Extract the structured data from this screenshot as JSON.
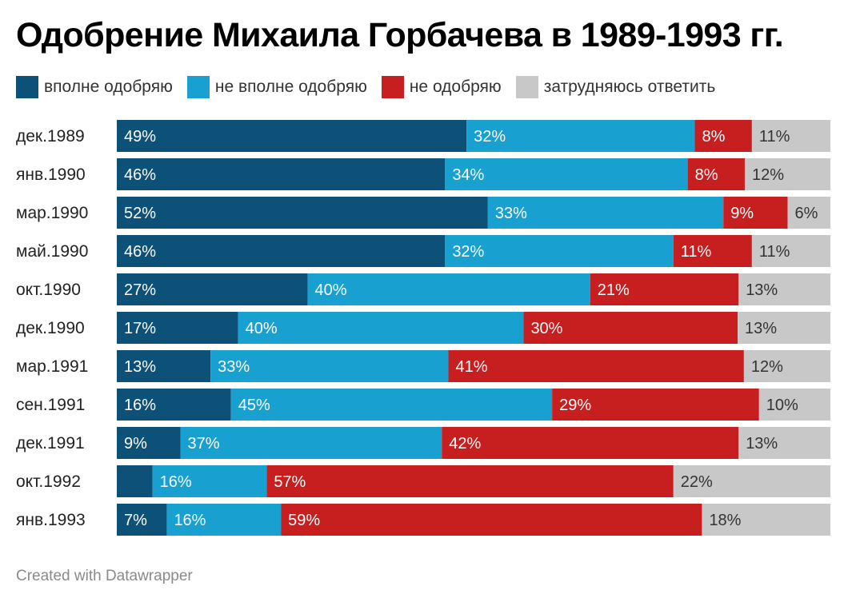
{
  "chart_data": {
    "type": "bar",
    "orientation": "horizontal",
    "stacked": true,
    "title": "Одобрение Михаила Горбачева в 1989-1993 гг.",
    "categories": [
      "дек.1989",
      "янв.1990",
      "мар.1990",
      "май.1990",
      "окт.1990",
      "дек.1990",
      "мар.1991",
      "сен.1991",
      "дек.1991",
      "окт.1992",
      "янв.1993"
    ],
    "series": [
      {
        "name": "вполне одобряю",
        "color": "#0d5078",
        "text_color": "#ffffff",
        "values": [
          49,
          46,
          52,
          46,
          27,
          17,
          13,
          16,
          9,
          5,
          7
        ],
        "labels": [
          "49%",
          "46%",
          "52%",
          "46%",
          "27%",
          "17%",
          "13%",
          "16%",
          "9%",
          "",
          "7%"
        ]
      },
      {
        "name": "не вполне одобряю",
        "color": "#18a1d0",
        "text_color": "#ffffff",
        "values": [
          32,
          34,
          33,
          32,
          40,
          40,
          33,
          45,
          37,
          16,
          16
        ],
        "labels": [
          "32%",
          "34%",
          "33%",
          "32%",
          "40%",
          "40%",
          "33%",
          "45%",
          "37%",
          "16%",
          "16%"
        ]
      },
      {
        "name": "не одобряю",
        "color": "#c71e1f",
        "text_color": "#ffffff",
        "values": [
          8,
          8,
          9,
          11,
          21,
          30,
          41,
          29,
          42,
          57,
          59
        ],
        "labels": [
          "8%",
          "8%",
          "9%",
          "11%",
          "21%",
          "30%",
          "41%",
          "29%",
          "42%",
          "57%",
          "59%"
        ]
      },
      {
        "name": "затрудняюсь ответить",
        "color": "#c8c8c8",
        "text_color": "#333333",
        "values": [
          11,
          12,
          6,
          11,
          13,
          13,
          12,
          10,
          13,
          22,
          18
        ],
        "labels": [
          "11%",
          "12%",
          "6%",
          "11%",
          "13%",
          "13%",
          "12%",
          "10%",
          "13%",
          "22%",
          "18%"
        ]
      }
    ],
    "xlim": [
      0,
      100
    ],
    "grid": false,
    "legend_position": "top"
  },
  "footer": "Created with Datawrapper"
}
